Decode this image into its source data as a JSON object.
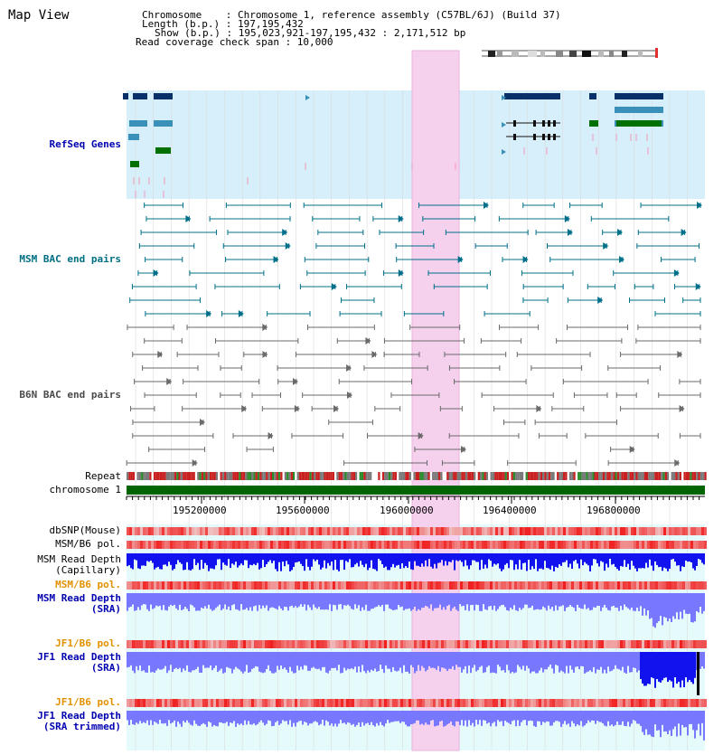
{
  "header": {
    "title": "Map View",
    "chromosome_line": "Chromosome    : Chromosome 1, reference assembly (C57BL/6J) (Build 37)",
    "length_line": "Length (b.p.) : 197,195,432",
    "show_line": "Show (b.p.) : 195,023,921-197,195,432 : 2,171,512 bp",
    "coverage_line": "Read coverage check span : 10,000"
  },
  "tracks": {
    "refseq": "RefSeq Genes",
    "msm_bac": "MSM BAC end pairs",
    "b6n_bac": "B6N BAC end pairs",
    "repeat": "Repeat",
    "chromosome": "chromosome 1",
    "dbsnp": "dbSNP(Mouse)",
    "msm_b6_pol_1": "MSM/B6 pol.",
    "msm_depth_cap": "MSM Read Depth\n(Capillary)",
    "msm_b6_pol_2": "MSM/B6 pol.",
    "msm_depth_sra": "MSM Read Depth\n(SRA)",
    "jf1_b6_pol_1": "JF1/B6 pol.",
    "jf1_depth_sra": "JF1 Read Depth\n(SRA)",
    "jf1_b6_pol_2": "JF1/B6 pol.",
    "jf1_depth_trim": "JF1 Read Depth\n(SRA trimmed)"
  },
  "axis": {
    "ticks": [
      "195200000",
      "195600000",
      "196000000",
      "196400000",
      "196800000"
    ]
  },
  "colors": {
    "gene_band": "#d7effa",
    "highlight": "#f6d1ee",
    "coverage_bg": "#e5fbfb",
    "chromosome_bar": "#006400",
    "refseq_dark": "#0a3069",
    "refseq_green": "#007000",
    "msm_pair": "#00708a",
    "b6n_pair": "#6a6a6a",
    "depth_blue": "#1212ef",
    "depth_light": "#7878ff"
  }
}
